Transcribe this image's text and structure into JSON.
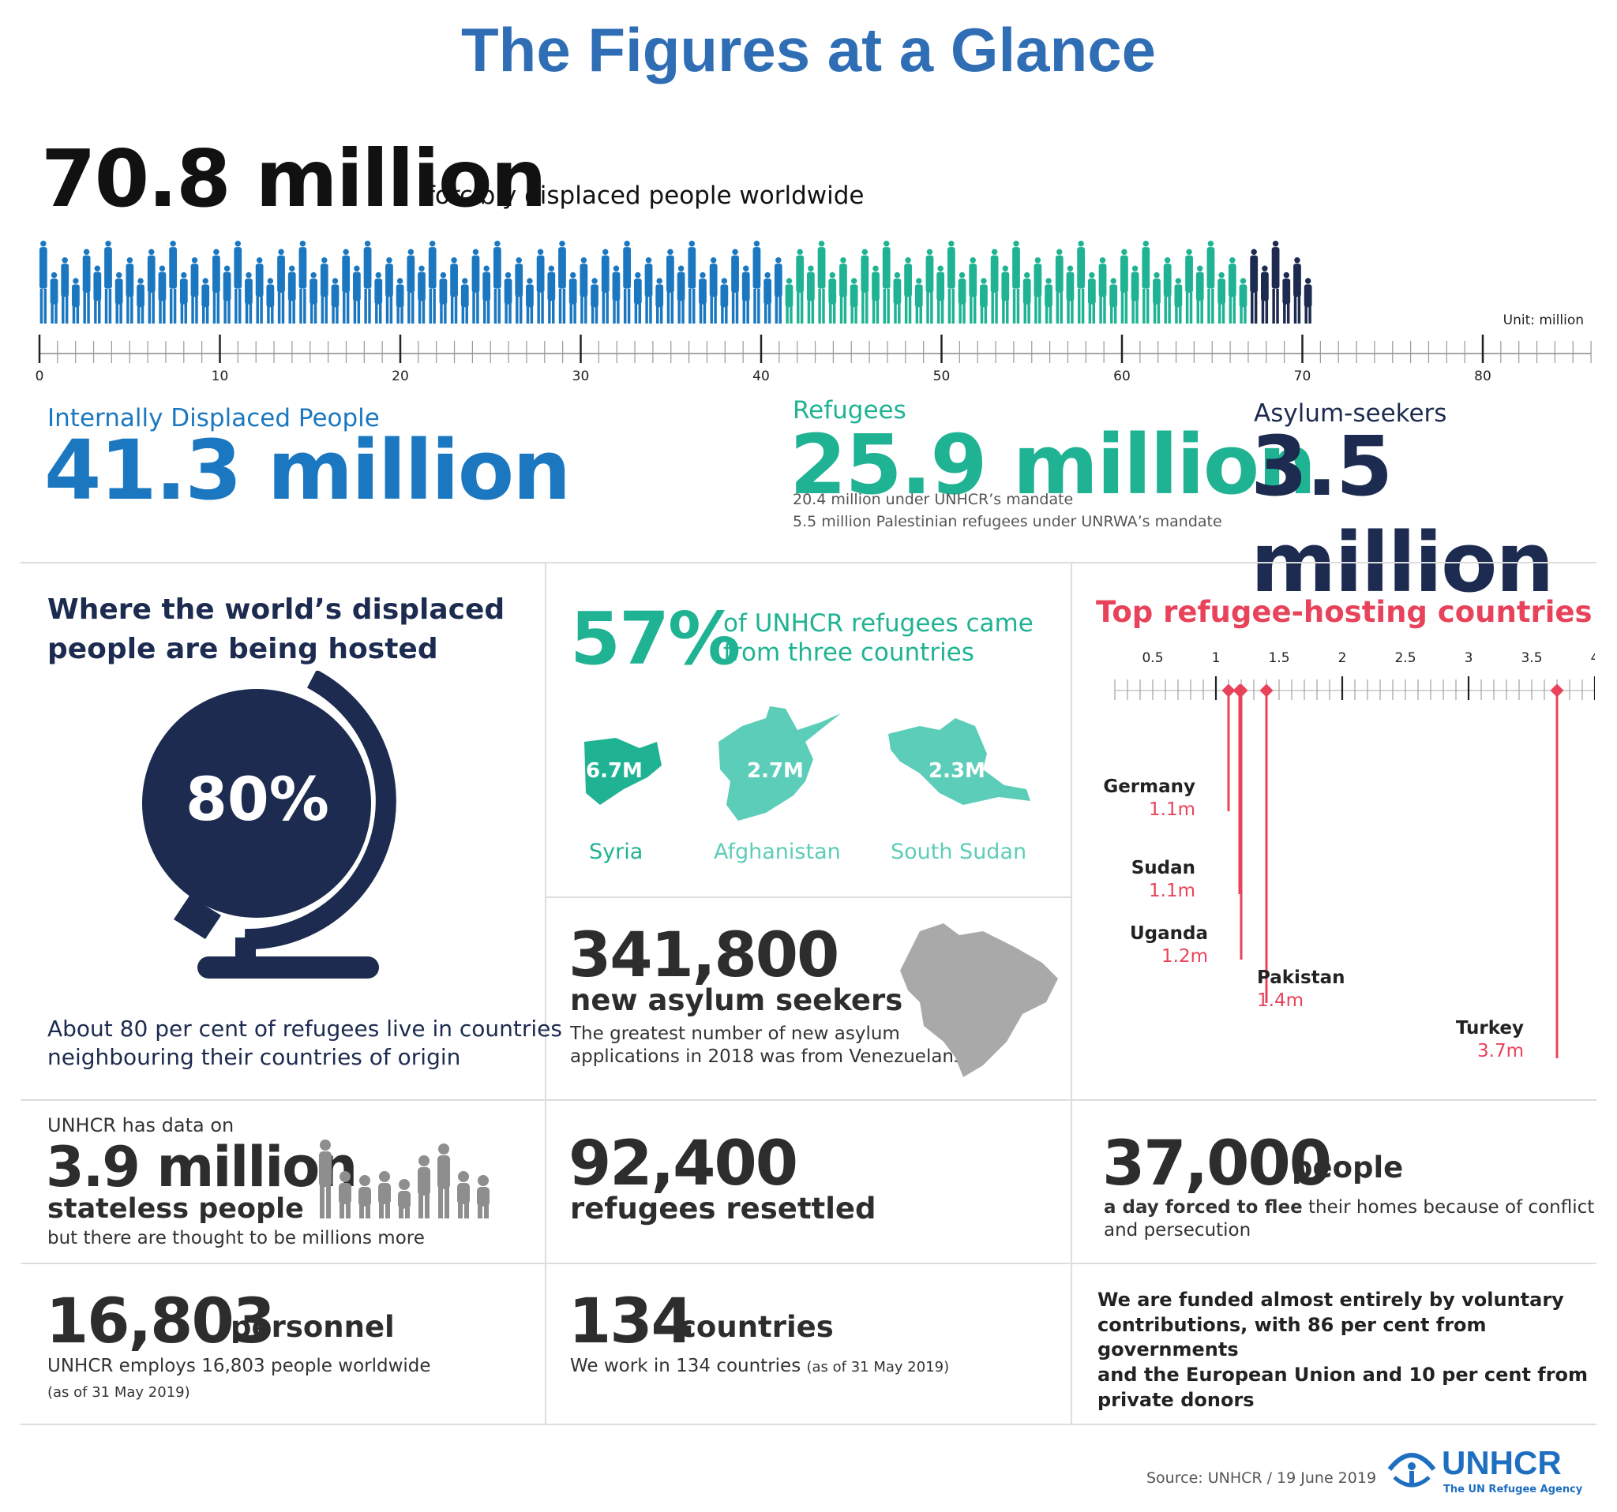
{
  "title": "The Figures at a Glance",
  "total": {
    "value": "70.8 million",
    "label": "forcibly displaced people worldwide"
  },
  "scale": {
    "unit": "Unit: million",
    "ticks": [
      "0",
      "10",
      "20",
      "30",
      "40",
      "50",
      "60",
      "70",
      "80"
    ]
  },
  "categories": {
    "idp": {
      "label": "Internally Displaced People",
      "value": "41.3 million",
      "color": "#1b78c0"
    },
    "refugees": {
      "label": "Refugees",
      "value": "25.9 million",
      "color": "#1fb394",
      "note1": "20.4 million under UNHCR’s mandate",
      "note2": "5.5 million Palestinian refugees under UNRWA’s mandate"
    },
    "asylum": {
      "label": "Asylum-seekers",
      "value": "3.5 million",
      "color": "#1c2b4f"
    }
  },
  "hosted": {
    "heading_line1": "Where the world’s displaced",
    "heading_line2": "people are being hosted",
    "percent": "80%",
    "text_line1": "About 80 per cent of refugees live in countries",
    "text_line2": "neighbouring their countries of origin"
  },
  "origin": {
    "percent": "57%",
    "text_line1": "of UNHCR refugees came",
    "text_line2": "from three countries",
    "countries": [
      {
        "name": "Syria",
        "value": "6.7M"
      },
      {
        "name": "Afghanistan",
        "value": "2.7M"
      },
      {
        "name": "South Sudan",
        "value": "2.3M"
      }
    ]
  },
  "asylum_new": {
    "value": "341,800",
    "label": "new asylum seekers",
    "text_line1": "The greatest number of new asylum",
    "text_line2": "applications in 2018 was from Venezuelans"
  },
  "hosting": {
    "heading": "Top refugee-hosting countries",
    "tick_labels": [
      "0.5",
      "1",
      "1.5",
      "2",
      "2.5",
      "3",
      "3.5",
      "4"
    ],
    "countries": [
      {
        "name": "Germany",
        "label": "1.1m",
        "value": 1.1
      },
      {
        "name": "Sudan",
        "label": "1.1m",
        "value": 1.1
      },
      {
        "name": "Uganda",
        "label": "1.2m",
        "value": 1.2
      },
      {
        "name": "Pakistan",
        "label": "1.4m",
        "value": 1.4
      },
      {
        "name": "Turkey",
        "label": "3.7m",
        "value": 3.7
      }
    ]
  },
  "stateless": {
    "pre": "UNHCR has data on",
    "value": "3.9 million",
    "label": "stateless people",
    "post": "but there are thought to be millions more"
  },
  "resettled": {
    "value": "92,400",
    "label": "refugees resettled"
  },
  "fleeing": {
    "value": "37,000",
    "unit": "people",
    "text_bold": "a day forced to flee",
    "text_rest": " their homes because of conflict",
    "text_line2": "and persecution"
  },
  "personnel": {
    "value": "16,803",
    "unit": "personnel",
    "text": "UNHCR employs 16,803 people worldwide",
    "note": "(as of 31 May 2019)"
  },
  "countries_work": {
    "value": "134",
    "unit": "countries",
    "text": "We work in 134 countries",
    "note": "(as of 31 May 2019)"
  },
  "funding": {
    "line1": "We are funded almost entirely by voluntary",
    "line2": "contributions, with 86 per cent from governments",
    "line3": "and the European Union and 10 per cent from",
    "line4": "private donors"
  },
  "footer": {
    "source": "Source: UNHCR / 19 June 2019",
    "logo_name": "UNHCR",
    "logo_tagline": "The UN Refugee Agency"
  },
  "colors": {
    "idp": "#1b78c0",
    "refugees": "#1fb394",
    "asylum": "#1c2b4f",
    "accent_red": "#e8435a",
    "map_teal": "#5ccdb8",
    "grey": "#9b9b9b"
  }
}
